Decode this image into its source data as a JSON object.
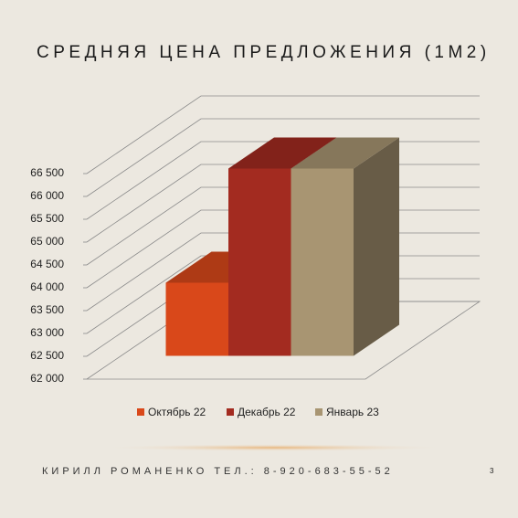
{
  "chart_data": {
    "type": "bar3d",
    "title": "СРЕДНЯЯ ЦЕНА ПРЕДЛОЖЕНИЯ (1М2)",
    "series": [
      {
        "name": "Октябрь 22",
        "color": "#d9481a",
        "values": [
          63600
        ]
      },
      {
        "name": "Декабрь 22",
        "color": "#a32b20",
        "values": [
          66100
        ]
      },
      {
        "name": "Январь 23",
        "color": "#a89572",
        "values": [
          66100
        ]
      }
    ],
    "ylim": [
      62000,
      66500
    ],
    "yticks": [
      {
        "value": 62000,
        "label": "62 000"
      },
      {
        "value": 62500,
        "label": "62 500"
      },
      {
        "value": 63000,
        "label": "63 000"
      },
      {
        "value": 63500,
        "label": "63 500"
      },
      {
        "value": 64000,
        "label": "64 000"
      },
      {
        "value": 64500,
        "label": "64 500"
      },
      {
        "value": 65000,
        "label": "65 000"
      },
      {
        "value": 65500,
        "label": "65 500"
      },
      {
        "value": 66000,
        "label": "66 000"
      },
      {
        "value": 66500,
        "label": "66 500"
      }
    ],
    "grid": true,
    "legend": "bottom"
  },
  "footer": "КИРИЛЛ РОМАНЕНКО ТЕЛ.: 8-920-683-55-52",
  "page_number": "3"
}
